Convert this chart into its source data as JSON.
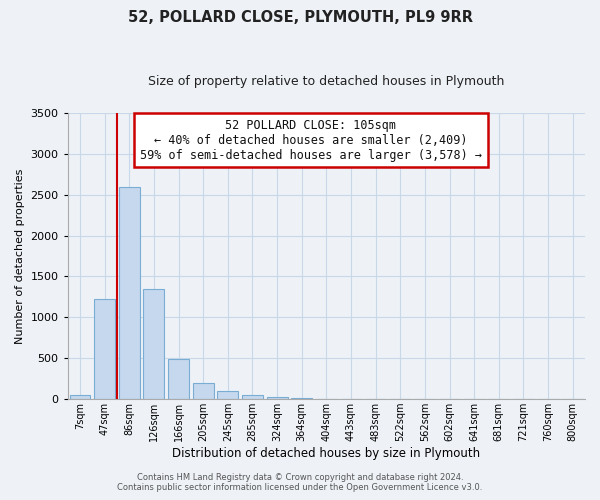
{
  "title": "52, POLLARD CLOSE, PLYMOUTH, PL9 9RR",
  "subtitle": "Size of property relative to detached houses in Plymouth",
  "xlabel": "Distribution of detached houses by size in Plymouth",
  "ylabel": "Number of detached properties",
  "bar_labels": [
    "7sqm",
    "47sqm",
    "86sqm",
    "126sqm",
    "166sqm",
    "205sqm",
    "245sqm",
    "285sqm",
    "324sqm",
    "364sqm",
    "404sqm",
    "443sqm",
    "483sqm",
    "522sqm",
    "562sqm",
    "602sqm",
    "641sqm",
    "681sqm",
    "721sqm",
    "760sqm",
    "800sqm"
  ],
  "bar_values": [
    45,
    1230,
    2590,
    1350,
    495,
    195,
    105,
    50,
    30,
    15,
    5,
    0,
    0,
    0,
    0,
    0,
    0,
    0,
    0,
    0,
    0
  ],
  "bar_color": "#c5d8ee",
  "bar_edge_color": "#7aadd4",
  "highlight_color": "#cc0000",
  "highlight_index": 2,
  "annotation_text": "52 POLLARD CLOSE: 105sqm\n← 40% of detached houses are smaller (2,409)\n59% of semi-detached houses are larger (3,578) →",
  "annotation_box_color": "#ffffff",
  "annotation_box_edge": "#cc0000",
  "ylim": [
    0,
    3500
  ],
  "yticks": [
    0,
    500,
    1000,
    1500,
    2000,
    2500,
    3000,
    3500
  ],
  "grid_color": "#c8d8e8",
  "bg_color": "#eef2f7",
  "footer_line1": "Contains HM Land Registry data © Crown copyright and database right 2024.",
  "footer_line2": "Contains public sector information licensed under the Open Government Licence v3.0."
}
